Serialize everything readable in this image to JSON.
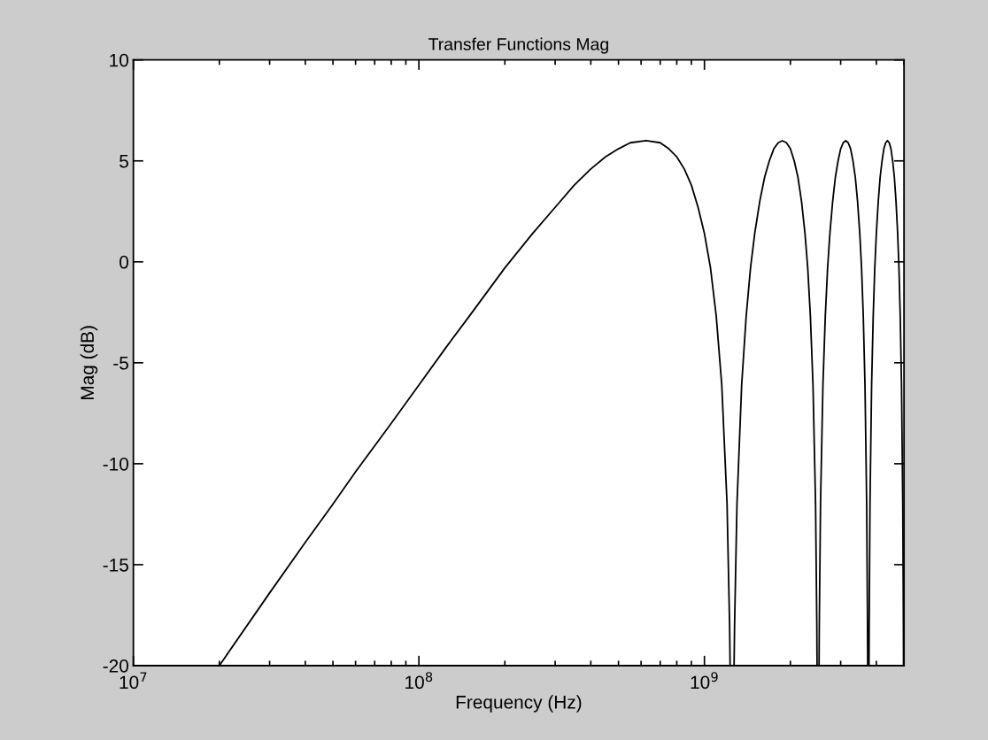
{
  "chart_data": {
    "type": "line",
    "title": "Transfer Functions Mag",
    "xlabel": "Frequency (Hz)",
    "ylabel": "Mag (dB)",
    "log": "x",
    "xlim": [
      10000000,
      5000000000
    ],
    "xticks": [
      {
        "value": 10000000,
        "label": "10$^{7}$"
      },
      {
        "value": 100000000,
        "label": "10$^{8}$"
      },
      {
        "value": 1000000000,
        "label": "10$^{9}$"
      }
    ],
    "ylim": [
      -20,
      10
    ],
    "yticks": [
      -20,
      -15,
      -10,
      -5,
      0,
      5,
      10
    ],
    "grid": false,
    "marker": "none",
    "line_style": "solid",
    "series": [
      {
        "color": "#000000",
        "x": [
          20000000,
          30000000,
          40000000,
          50000000,
          60000000,
          80000000,
          100000000,
          125000000,
          150000000,
          200000000,
          250000000,
          300000000,
          350000000,
          400000000,
          450000000,
          500000000,
          550000000,
          625000000,
          700000000,
          750000000,
          800000000,
          850000000,
          900000000,
          950000000,
          1000000000,
          1050000000,
          1100000000,
          1150000000,
          1200000000,
          1225000000,
          1230000000,
          1250000000,
          1270000000,
          1275000000,
          1300000000,
          1350000000,
          1400000000,
          1450000000,
          1500000000,
          1562500000,
          1625000000,
          1687500000,
          1750000000,
          1812500000,
          1875000000,
          1937500000,
          2000000000,
          2062500000,
          2125000000,
          2187500000,
          2250000000,
          2300000000,
          2350000000,
          2400000000,
          2450000000,
          2475000000,
          2480000000,
          2500000000,
          2520000000,
          2525000000,
          2550000000,
          2600000000,
          2650000000,
          2700000000,
          2750000000,
          2812500000,
          2875000000,
          2937500000,
          3000000000,
          3062500000,
          3125000000,
          3187500000,
          3250000000,
          3312500000,
          3375000000,
          3437500000,
          3500000000,
          3550000000,
          3600000000,
          3650000000,
          3700000000,
          3725000000,
          3730000000,
          3750000000,
          3770000000,
          3775000000,
          3800000000,
          3850000000,
          3900000000,
          3950000000,
          4000000000,
          4062500000,
          4125000000,
          4187500000,
          4250000000,
          4312500000,
          4375000000,
          4437500000,
          4500000000,
          4562500000,
          4625000000,
          4687500000,
          4750000000,
          4800000000,
          4850000000,
          4900000000,
          4950000000,
          4975000000,
          4980000000
        ],
        "values": [
          -20.0,
          -16.4,
          -13.9,
          -12.0,
          -10.4,
          -8.0,
          -6.1,
          -4.2,
          -2.7,
          -0.3,
          1.4,
          2.7,
          3.8,
          4.6,
          5.2,
          5.6,
          5.9,
          6.0,
          5.9,
          5.6,
          5.2,
          4.6,
          3.8,
          2.7,
          1.4,
          -0.3,
          -2.7,
          -6.1,
          -12.0,
          -18.0,
          -20.0,
          null,
          -20.0,
          -18.0,
          -12.0,
          -6.1,
          -2.7,
          -0.3,
          1.4,
          3.0,
          4.2,
          5.0,
          5.6,
          5.9,
          6.0,
          5.9,
          5.6,
          5.0,
          4.2,
          3.0,
          1.4,
          -0.3,
          -2.7,
          -6.1,
          -12.0,
          -18.0,
          -20.0,
          null,
          -20.0,
          -18.0,
          -12.0,
          -6.1,
          -2.7,
          -0.3,
          1.4,
          3.0,
          4.2,
          5.0,
          5.6,
          5.9,
          6.0,
          5.9,
          5.6,
          5.0,
          4.2,
          3.0,
          1.4,
          -0.3,
          -2.7,
          -6.1,
          -12.0,
          -18.0,
          -20.0,
          null,
          -20.0,
          -18.0,
          -12.0,
          -6.1,
          -2.7,
          -0.3,
          1.4,
          3.0,
          4.2,
          5.0,
          5.6,
          5.9,
          6.0,
          5.9,
          5.6,
          5.0,
          4.2,
          3.0,
          1.4,
          -0.3,
          -2.7,
          -6.1,
          -12.0,
          -18.0,
          -20.0
        ]
      }
    ]
  }
}
